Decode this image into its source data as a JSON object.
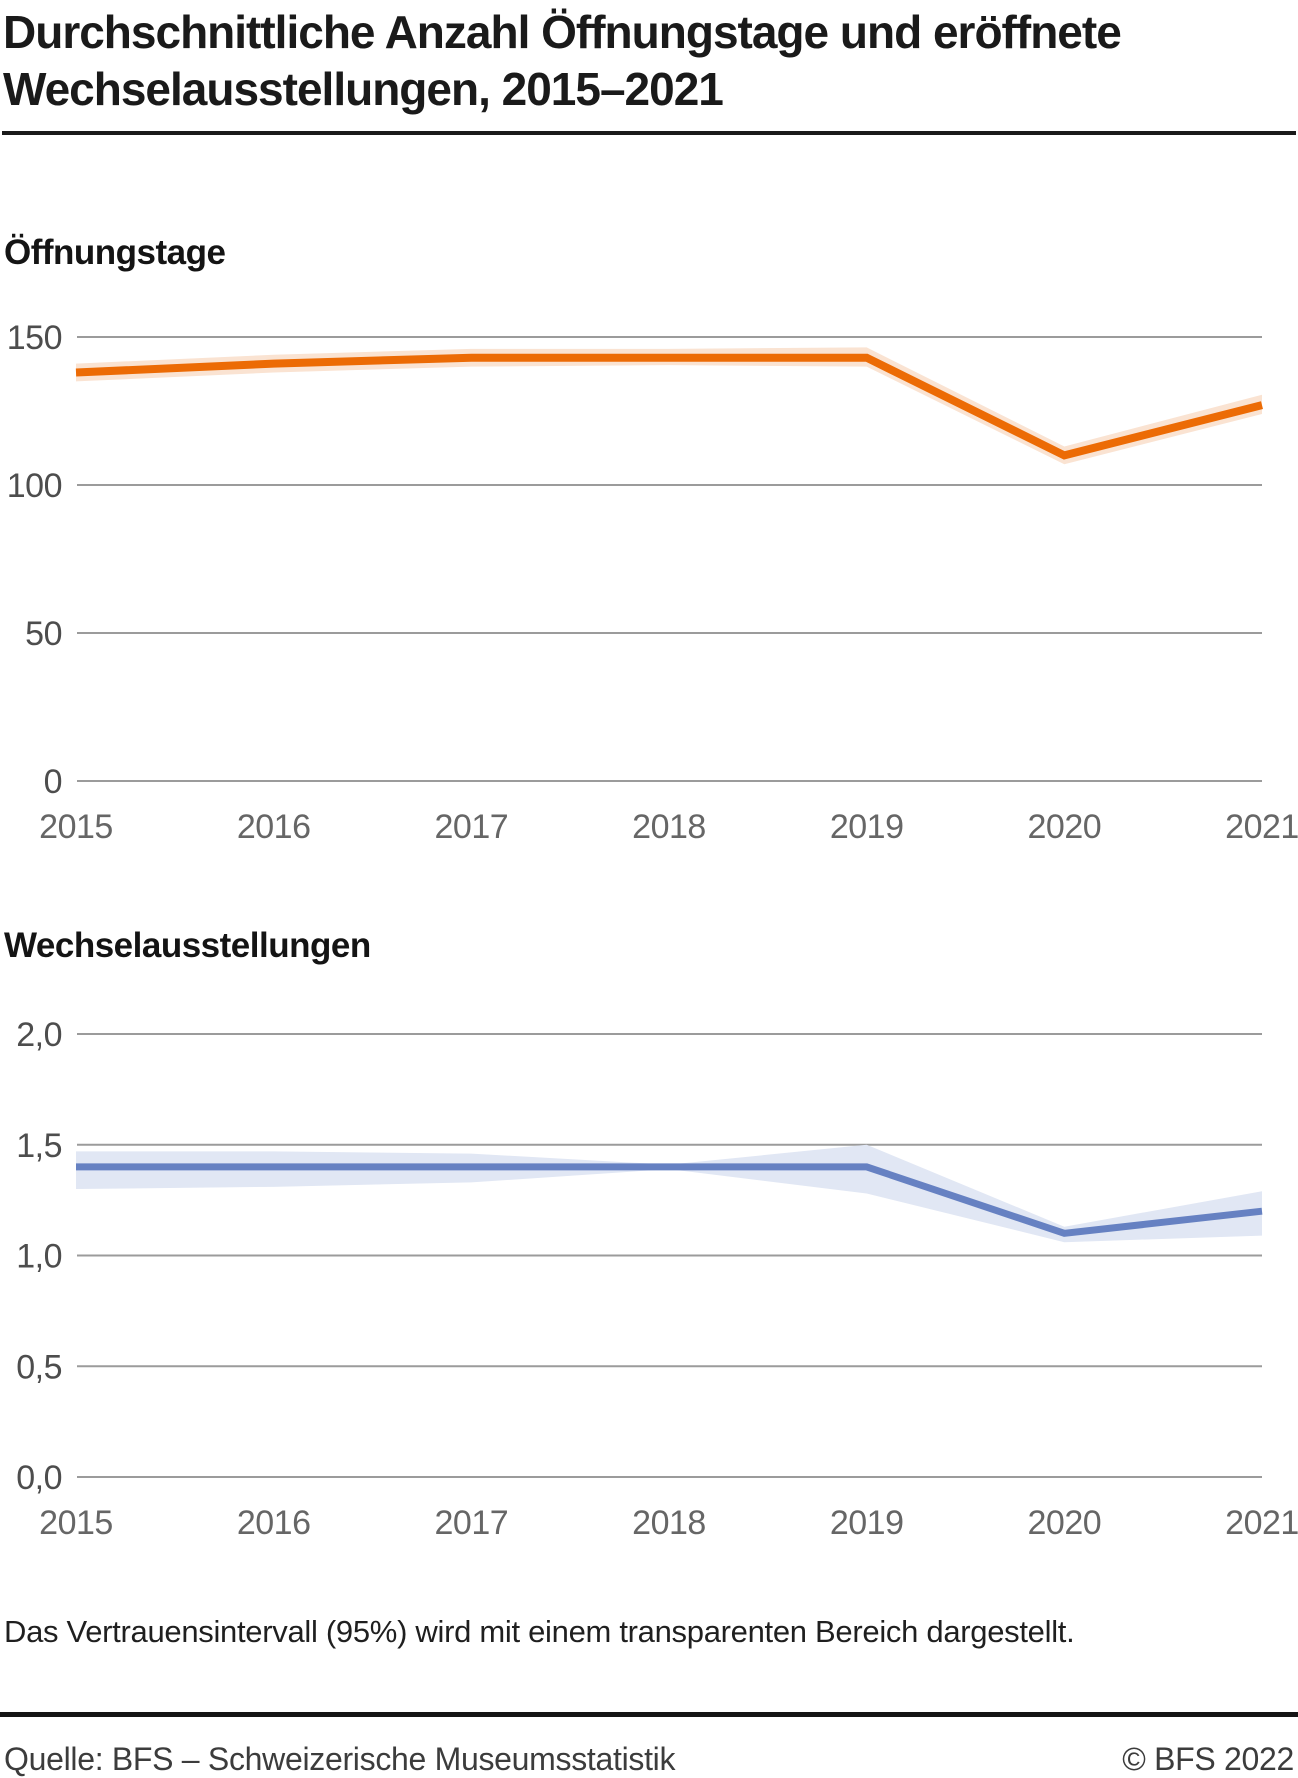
{
  "header": {
    "title_line1": "Durchschnittliche Anzahl Öffnungstage und eröffnete",
    "title_line2": "Wechselausstellungen, 2015–2021"
  },
  "footnote": "Das Vertrauensintervall (95%) wird mit einem transparenten Bereich dargestellt.",
  "footer": {
    "source": "Quelle: BFS – Schweizerische Museumsstatistik",
    "copyright": "© BFS 2022"
  },
  "chart_data": [
    {
      "type": "line",
      "title": "Öffnungstage",
      "categories": [
        "2015",
        "2016",
        "2017",
        "2018",
        "2019",
        "2020",
        "2021"
      ],
      "series": [
        {
          "name": "Öffnungstage",
          "values": [
            138,
            141,
            143,
            143,
            143,
            110,
            127
          ],
          "ci_lower": [
            135,
            138,
            140,
            140.5,
            140,
            107,
            124
          ],
          "ci_upper": [
            141,
            144,
            146,
            146,
            146.5,
            113,
            130.5
          ]
        }
      ],
      "ylim": [
        0,
        150
      ],
      "yticks": [
        0,
        50,
        100,
        150
      ],
      "ytick_labels": [
        "0",
        "50",
        "100",
        "150"
      ],
      "grid": true,
      "legend": "none",
      "line_color": "#ec6b05",
      "band_color": "#fae3d2"
    },
    {
      "type": "line",
      "title": "Wechselausstellungen",
      "categories": [
        "2015",
        "2016",
        "2017",
        "2018",
        "2019",
        "2020",
        "2021"
      ],
      "series": [
        {
          "name": "Wechselausstellungen",
          "values": [
            1.4,
            1.4,
            1.4,
            1.4,
            1.4,
            1.1,
            1.2
          ],
          "ci_lower": [
            1.3,
            1.31,
            1.33,
            1.39,
            1.28,
            1.06,
            1.09
          ],
          "ci_upper": [
            1.47,
            1.47,
            1.46,
            1.41,
            1.5,
            1.13,
            1.29
          ]
        }
      ],
      "ylim": [
        0,
        2
      ],
      "yticks": [
        0,
        0.5,
        1,
        1.5,
        2
      ],
      "ytick_labels": [
        "0,0",
        "0,5",
        "1,0",
        "1,5",
        "2,0"
      ],
      "grid": true,
      "legend": "none",
      "line_color": "#6681c2",
      "band_color": "#e1e7f4"
    }
  ]
}
